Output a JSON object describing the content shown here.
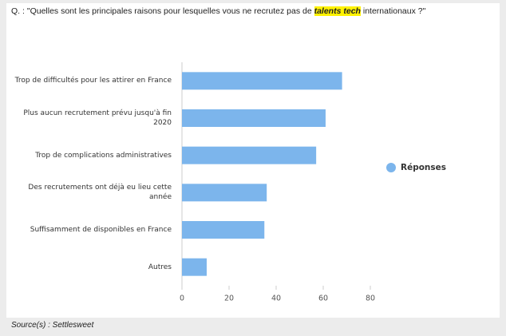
{
  "title_prefix": "Q. : \"Quelles sont les principales raisons pour lesquelles vous ne recrutez pas de ",
  "title_highlight": "talents tech",
  "title_suffix": " internationaux ?\"",
  "source": "Source(s) : Settlesweet",
  "chart_data": {
    "type": "bar",
    "orientation": "horizontal",
    "categories": [
      "Trop de difficultés pour les attirer en France",
      "Plus aucun recrutement prévu jusqu'à fin 2020",
      "Trop de complications administratives",
      "Des recrutements ont déjà eu lieu cette année",
      "Suffisamment de disponibles en France",
      "Autres"
    ],
    "series": [
      {
        "name": "Réponses",
        "color": "#7cb5ec",
        "values": [
          68,
          61,
          57,
          36,
          35,
          10.5
        ]
      }
    ],
    "xlim": [
      0,
      80
    ],
    "xticks": [
      0,
      20,
      40,
      60,
      80
    ],
    "legend": "right"
  }
}
